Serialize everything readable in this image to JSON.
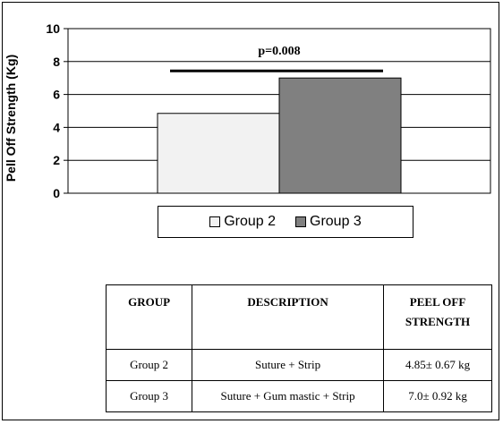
{
  "chart_data": {
    "type": "bar",
    "categories": [
      "Group 2",
      "Group 3"
    ],
    "values": [
      4.85,
      7.0
    ],
    "colors": [
      "#f2f2f2",
      "#808080"
    ],
    "ylabel": "Pell Off Strength (Kg)",
    "xlabel": "",
    "ylim": [
      0,
      10
    ],
    "yticks": [
      "0",
      "2",
      "4",
      "6",
      "8",
      "10"
    ],
    "annotation": "p=0.008",
    "grid": true,
    "legend_position": "bottom"
  },
  "legend": {
    "items": [
      {
        "label": "Group 2",
        "color": "#f2f2f2"
      },
      {
        "label": "Group 3",
        "color": "#808080"
      }
    ]
  },
  "table": {
    "headers": [
      "GROUP",
      "DESCRIPTION",
      "PEEL OFF\nSTRENGTH"
    ],
    "rows": [
      [
        "Group 2",
        "Suture + Strip",
        "4.85± 0.67 kg"
      ],
      [
        "Group 3",
        "Suture + Gum mastic + Strip",
        "7.0± 0.92 kg"
      ]
    ]
  }
}
